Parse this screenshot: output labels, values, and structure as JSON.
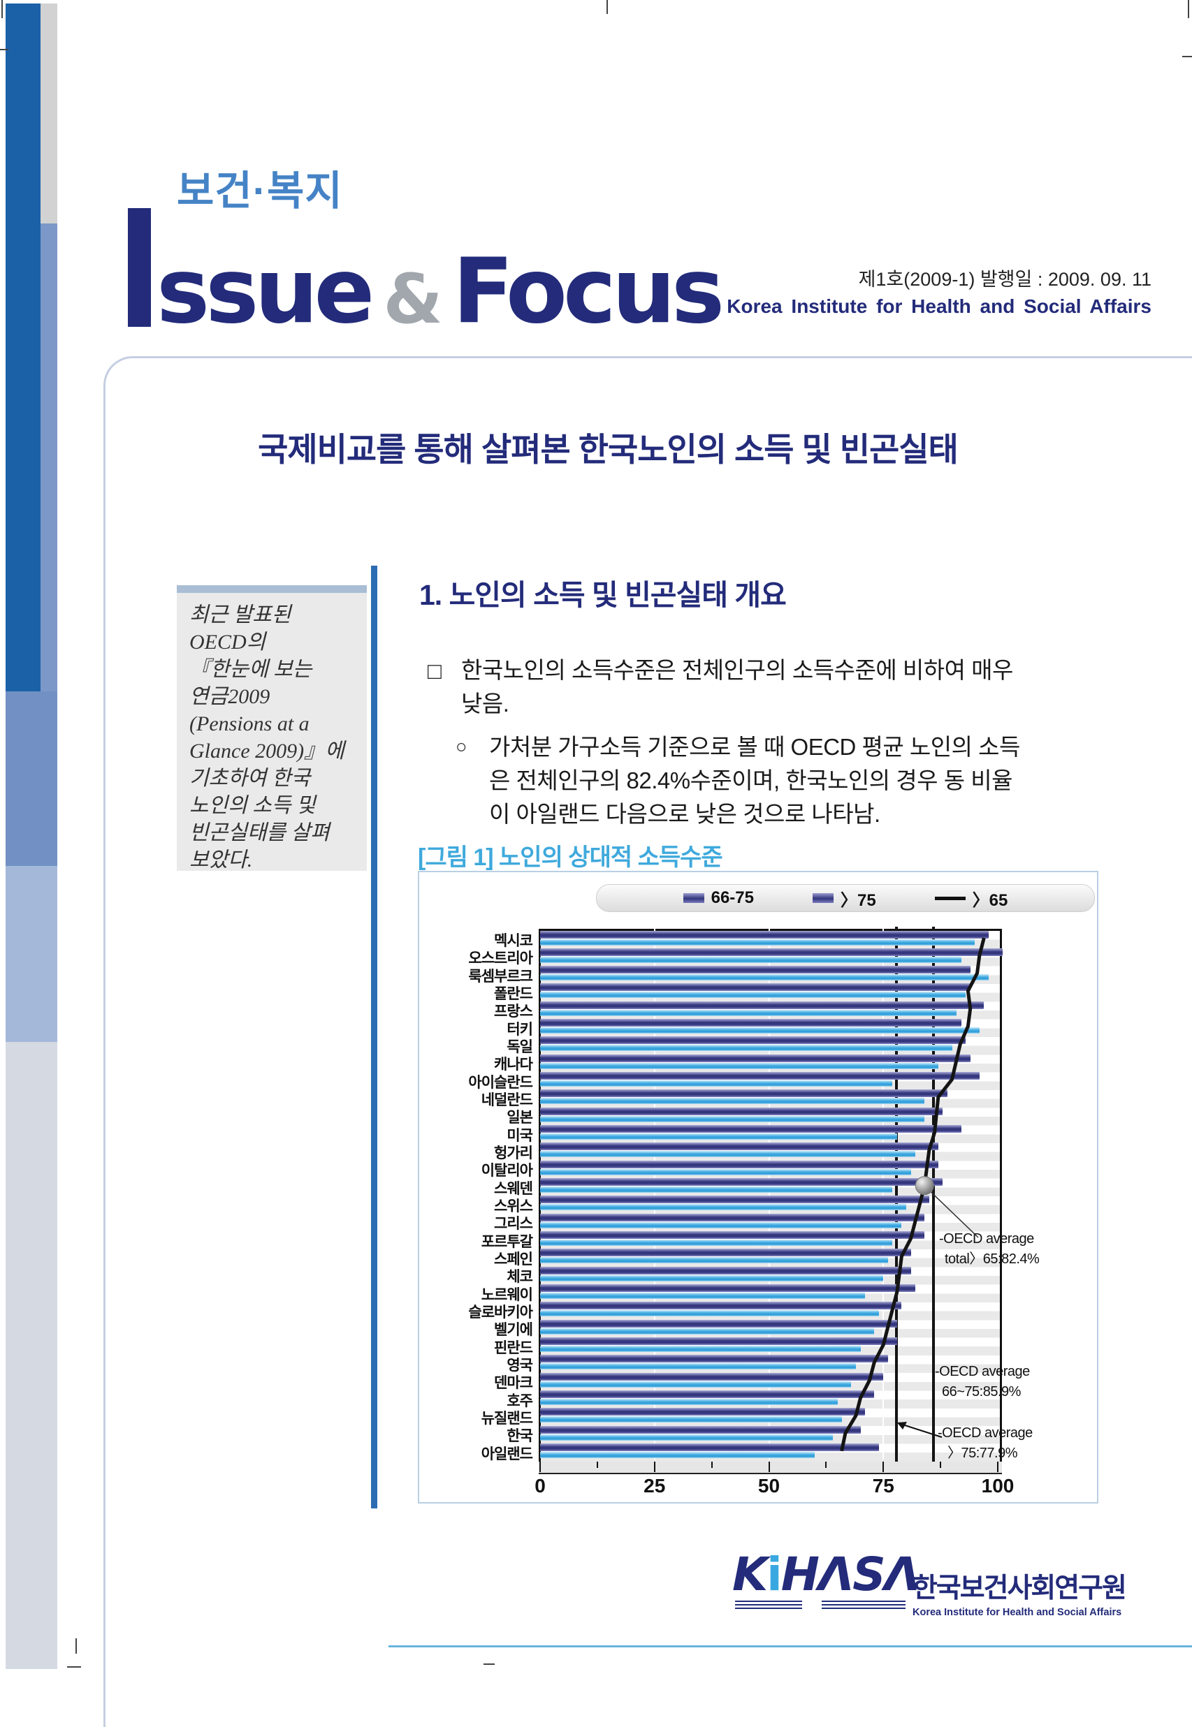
{
  "masthead": {
    "kicker": "보건·복지",
    "logo_issue": "ssue",
    "logo_amp": "&",
    "logo_focus": "Focus",
    "issue_no": "제1호(2009-1) 발행일 : 2009. 09. 11",
    "org_en": "Korea Institute for Health and Social Affairs"
  },
  "title": "국제비교를 통해 살펴본 한국노인의 소득 및 빈곤실태",
  "sidebar_note": "최근 발표된\nOECD의\n『한눈에 보는\n연금2009\n(Pensions at a\nGlance 2009)』에\n기초하여 한국\n노인의 소득 및\n빈곤실태를 살펴\n보았다.",
  "section1": {
    "heading": "1.  노인의 소득 및 빈곤실태 개요",
    "bullet1_marker": "□",
    "bullet1_text": "한국노인의 소득수준은 전체인구의 소득수준에 비하여 매우\n낮음.",
    "bullet2_marker": "○",
    "bullet2_text": "가처분 가구소득 기준으로 볼 때 OECD 평균 노인의 소득\n은 전체인구의 82.4%수준이며, 한국노인의 경우 동 비율\n이 아일랜드 다음으로 낮은 것으로 나타남."
  },
  "figure": {
    "caption": "[그림 1] 노인의 상대적 소득수준",
    "annotation_total_line1": "-OECD average",
    "annotation_total_line2": "total〉65:82.4%",
    "annotation_6675_line1": "-OECD average",
    "annotation_6675_line2": "66~75:85.9%",
    "annotation_75_line1": "-OECD average",
    "annotation_75_line2": "〉75:77.9%"
  },
  "chart_data": {
    "type": "bar",
    "orientation": "horizontal",
    "title": "노인의 상대적 소득수준",
    "categories": [
      "멕시코",
      "오스트리아",
      "룩셈부르크",
      "폴란드",
      "프랑스",
      "터키",
      "독일",
      "캐나다",
      "아이슬란드",
      "네덜란드",
      "일본",
      "미국",
      "헝가리",
      "이탈리아",
      "스웨덴",
      "스위스",
      "그리스",
      "포르투갈",
      "스페인",
      "체코",
      "노르웨이",
      "슬로바키아",
      "벨기에",
      "핀란드",
      "영국",
      "덴마크",
      "호주",
      "뉴질랜드",
      "한국",
      "아일랜드"
    ],
    "series": [
      {
        "name": "66-75",
        "type": "bar",
        "color": "#34367e",
        "values": [
          98,
          101,
          94,
          94,
          97,
          92,
          93,
          94,
          96,
          89,
          88,
          92,
          87,
          87,
          88,
          85,
          84,
          84,
          81,
          81,
          82,
          79,
          78,
          78,
          76,
          75,
          73,
          71,
          70,
          74
        ]
      },
      {
        "name": "〉75",
        "type": "bar",
        "color": "#42abe2",
        "values": [
          95,
          92,
          98,
          93,
          91,
          96,
          90,
          87,
          77,
          84,
          84,
          78,
          82,
          81,
          77,
          80,
          79,
          77,
          76,
          75,
          71,
          74,
          73,
          70,
          69,
          68,
          65,
          66,
          64,
          60
        ]
      },
      {
        "name": "〉65",
        "type": "line",
        "color": "#141414",
        "values": [
          97,
          96,
          95.5,
          93.5,
          94,
          93.5,
          91.8,
          90.9,
          90,
          87,
          86.6,
          86.2,
          85,
          84.5,
          84,
          83,
          82,
          81,
          79,
          78.5,
          78,
          77,
          76,
          75,
          73,
          72,
          70,
          69,
          66.7,
          65.9
        ]
      }
    ],
    "xlim": [
      0,
      100
    ],
    "x_ticks": [
      0,
      25,
      50,
      75,
      100
    ],
    "reference_lines": [
      {
        "value": 77.9,
        "label": "OECD average 〉75:77.9%"
      },
      {
        "value": 85.9,
        "label": "OECD average 66~75:85.9%"
      }
    ],
    "oecd_average_total": 82.4,
    "marker_on_category": "스웨덴",
    "grid": true,
    "legend_position": "top"
  },
  "footer": {
    "logo_k": "K",
    "logo_i": "i",
    "logo_rest": "HΛSΛ",
    "org_ko": "한국보건사회연구원",
    "org_en": "Korea Institute for Health and Social Affairs"
  }
}
